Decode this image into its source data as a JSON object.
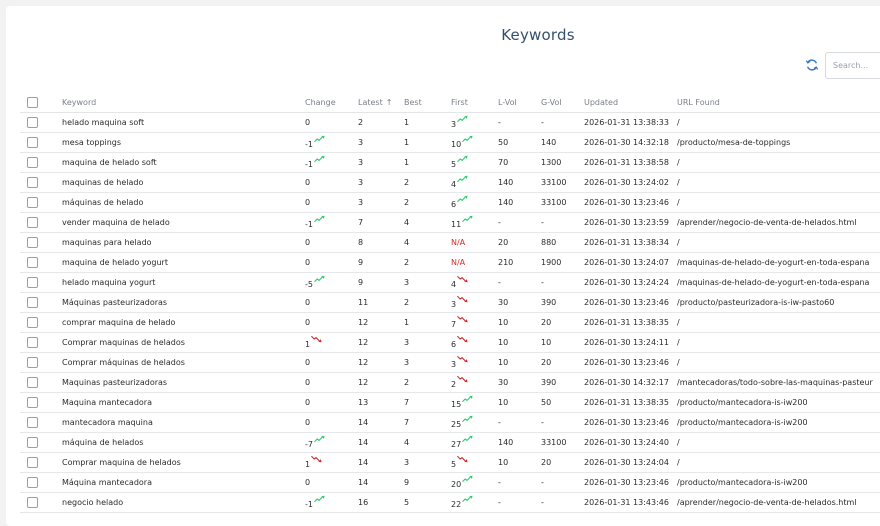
{
  "page": {
    "title": "Keywords",
    "refresh_icon": "refresh-icon",
    "search_placeholder": "Search..."
  },
  "colors": {
    "title": "#34506e",
    "trend_up": "#2ecc71",
    "trend_down": "#d42a2a",
    "na": "#d42a2a"
  },
  "table": {
    "columns": {
      "keyword": "Keyword",
      "change": "Change",
      "latest": "Latest",
      "latest_sort_icon": "↑",
      "best": "Best",
      "first": "First",
      "lvol": "L-Vol",
      "gvol": "G-Vol",
      "updated": "Updated",
      "url": "URL Found"
    },
    "rows": [
      {
        "keyword": "helado maquina soft",
        "change": "0",
        "change_trend": "",
        "latest": "2",
        "best": "1",
        "first": "3",
        "first_trend": "up",
        "lvol": "-",
        "gvol": "-",
        "updated": "2026-01-31 13:38:33",
        "url": "/"
      },
      {
        "keyword": "mesa toppings",
        "change": "-1",
        "change_trend": "up",
        "latest": "3",
        "best": "1",
        "first": "10",
        "first_trend": "up",
        "lvol": "50",
        "gvol": "140",
        "updated": "2026-01-30 14:32:18",
        "url": "/producto/mesa-de-toppings"
      },
      {
        "keyword": "maquina de helado soft",
        "change": "-1",
        "change_trend": "up",
        "latest": "3",
        "best": "1",
        "first": "5",
        "first_trend": "up",
        "lvol": "70",
        "gvol": "1300",
        "updated": "2026-01-31 13:38:58",
        "url": "/"
      },
      {
        "keyword": "maquinas de helado",
        "change": "0",
        "change_trend": "",
        "latest": "3",
        "best": "2",
        "first": "4",
        "first_trend": "up",
        "lvol": "140",
        "gvol": "33100",
        "updated": "2026-01-30 13:24:02",
        "url": "/"
      },
      {
        "keyword": "máquinas de helado",
        "change": "0",
        "change_trend": "",
        "latest": "3",
        "best": "2",
        "first": "6",
        "first_trend": "up",
        "lvol": "140",
        "gvol": "33100",
        "updated": "2026-01-30 13:23:46",
        "url": "/"
      },
      {
        "keyword": "vender maquina de helado",
        "change": "-1",
        "change_trend": "up",
        "latest": "7",
        "best": "4",
        "first": "11",
        "first_trend": "up",
        "lvol": "-",
        "gvol": "-",
        "updated": "2026-01-30 13:23:59",
        "url": "/aprender/negocio-de-venta-de-helados.html"
      },
      {
        "keyword": "maquinas para helado",
        "change": "0",
        "change_trend": "",
        "latest": "8",
        "best": "4",
        "first": "N/A",
        "first_trend": "",
        "lvol": "20",
        "gvol": "880",
        "updated": "2026-01-31 13:38:34",
        "url": "/"
      },
      {
        "keyword": "maquina de helado yogurt",
        "change": "0",
        "change_trend": "",
        "latest": "9",
        "best": "2",
        "first": "N/A",
        "first_trend": "",
        "lvol": "210",
        "gvol": "1900",
        "updated": "2026-01-30 13:24:07",
        "url": "/maquinas-de-helado-de-yogurt-en-toda-espana"
      },
      {
        "keyword": "helado maquina yogurt",
        "change": "-5",
        "change_trend": "up",
        "latest": "9",
        "best": "3",
        "first": "4",
        "first_trend": "down",
        "lvol": "-",
        "gvol": "-",
        "updated": "2026-01-30 13:24:24",
        "url": "/maquinas-de-helado-de-yogurt-en-toda-espana"
      },
      {
        "keyword": "Máquinas pasteurizadoras",
        "change": "0",
        "change_trend": "",
        "latest": "11",
        "best": "2",
        "first": "3",
        "first_trend": "down",
        "lvol": "30",
        "gvol": "390",
        "updated": "2026-01-30 13:23:46",
        "url": "/producto/pasteurizadora-is-iw-pasto60"
      },
      {
        "keyword": "comprar maquina de helado",
        "change": "0",
        "change_trend": "",
        "latest": "12",
        "best": "1",
        "first": "7",
        "first_trend": "down",
        "lvol": "10",
        "gvol": "20",
        "updated": "2026-01-31 13:38:35",
        "url": "/"
      },
      {
        "keyword": "Comprar maquinas de helados",
        "change": "1",
        "change_trend": "down",
        "latest": "12",
        "best": "3",
        "first": "6",
        "first_trend": "down",
        "lvol": "10",
        "gvol": "10",
        "updated": "2026-01-30 13:24:11",
        "url": "/"
      },
      {
        "keyword": "Comprar máquinas de helados",
        "change": "0",
        "change_trend": "",
        "latest": "12",
        "best": "3",
        "first": "3",
        "first_trend": "down",
        "lvol": "10",
        "gvol": "20",
        "updated": "2026-01-30 13:23:46",
        "url": "/"
      },
      {
        "keyword": "Maquinas pasteurizadoras",
        "change": "0",
        "change_trend": "",
        "latest": "12",
        "best": "2",
        "first": "2",
        "first_trend": "down",
        "lvol": "30",
        "gvol": "390",
        "updated": "2026-01-30 14:32:17",
        "url": "/mantecadoras/todo-sobre-las-maquinas-pasteur"
      },
      {
        "keyword": "Maquina mantecadora",
        "change": "0",
        "change_trend": "",
        "latest": "13",
        "best": "7",
        "first": "15",
        "first_trend": "up",
        "lvol": "10",
        "gvol": "50",
        "updated": "2026-01-31 13:38:35",
        "url": "/producto/mantecadora-is-iw200"
      },
      {
        "keyword": "mantecadora maquina",
        "change": "0",
        "change_trend": "",
        "latest": "14",
        "best": "7",
        "first": "25",
        "first_trend": "up",
        "lvol": "-",
        "gvol": "-",
        "updated": "2026-01-30 13:23:46",
        "url": "/producto/mantecadora-is-iw200"
      },
      {
        "keyword": "máquina de helados",
        "change": "-7",
        "change_trend": "up",
        "latest": "14",
        "best": "4",
        "first": "27",
        "first_trend": "up",
        "lvol": "140",
        "gvol": "33100",
        "updated": "2026-01-30 13:24:40",
        "url": "/"
      },
      {
        "keyword": "Comprar maquina de helados",
        "change": "1",
        "change_trend": "down",
        "latest": "14",
        "best": "3",
        "first": "5",
        "first_trend": "down",
        "lvol": "10",
        "gvol": "20",
        "updated": "2026-01-30 13:24:04",
        "url": "/"
      },
      {
        "keyword": "Máquina mantecadora",
        "change": "0",
        "change_trend": "",
        "latest": "14",
        "best": "9",
        "first": "20",
        "first_trend": "up",
        "lvol": "-",
        "gvol": "-",
        "updated": "2026-01-30 13:23:46",
        "url": "/producto/mantecadora-is-iw200"
      },
      {
        "keyword": "negocio helado",
        "change": "-1",
        "change_trend": "up",
        "latest": "16",
        "best": "5",
        "first": "22",
        "first_trend": "up",
        "lvol": "-",
        "gvol": "-",
        "updated": "2026-01-31 13:43:46",
        "url": "/aprender/negocio-de-venta-de-helados.html"
      }
    ]
  }
}
